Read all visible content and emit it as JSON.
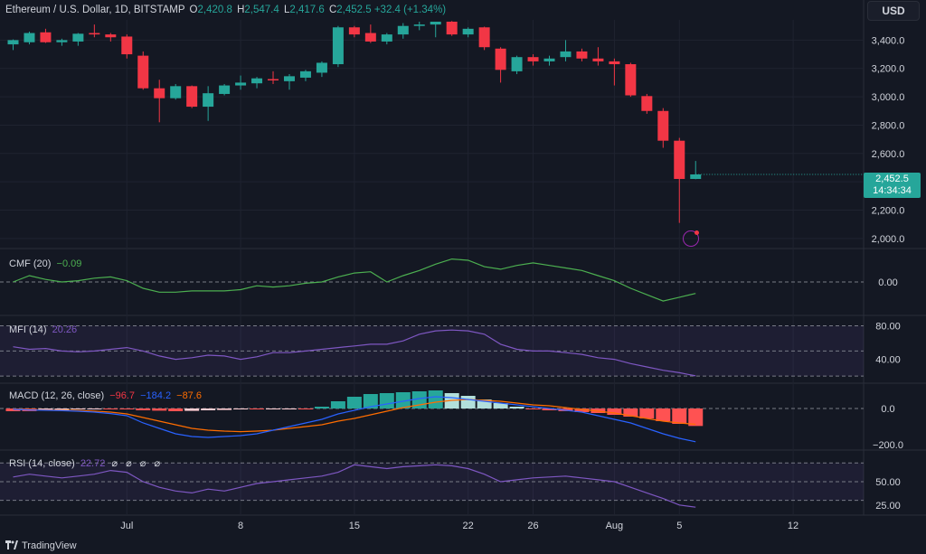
{
  "header": {
    "symbol": "Ethereum / U.S. Dollar, 1D, BITSTAMP",
    "open_label": "O",
    "open": "2,420.8",
    "high_label": "H",
    "high": "2,547.4",
    "low_label": "L",
    "low": "2,417.6",
    "close_label": "C",
    "close": "2,452.5",
    "change": "+32.4 (+1.34%)"
  },
  "currency_button": "USD",
  "price_tag": {
    "price": "2,452.5",
    "countdown": "14:34:34"
  },
  "footer": {
    "brand": "TradingView"
  },
  "colors": {
    "up": "#26a69a",
    "down": "#f23645",
    "bg": "#141823",
    "cmf": "#4caf50",
    "rsi": "#7e57c2",
    "macd": "#2962ff",
    "signal": "#ff6d00"
  },
  "indicators": {
    "cmf": {
      "label": "CMF (20)",
      "value": "−0.09"
    },
    "mfi": {
      "label": "MFI (14)",
      "value": "20.26"
    },
    "macd": {
      "label": "MACD (12, 26, close)",
      "hist": "−96.7",
      "macd": "−184.2",
      "signal": "−87.6"
    },
    "rsi": {
      "label": "RSI (14, close)",
      "value": "22.72",
      "icons": "⌀ ⌀ ⌀ ⌀"
    }
  },
  "chart_data": {
    "type": "candlestick",
    "title": "Ethereum / U.S. Dollar, 1D, BITSTAMP",
    "x_tick_labels": [
      {
        "label": "Jul",
        "index": 7
      },
      {
        "label": "8",
        "index": 14
      },
      {
        "label": "15",
        "index": 21
      },
      {
        "label": "22",
        "index": 28
      },
      {
        "label": "26",
        "index": 32
      },
      {
        "label": "Aug",
        "index": 37
      },
      {
        "label": "5",
        "index": 41
      },
      {
        "label": "12",
        "index": 48
      }
    ],
    "x_slots": 55,
    "price_axis": {
      "ticks": [
        2000,
        2200,
        2400,
        2600,
        2800,
        3000,
        3200,
        3400
      ],
      "range": [
        1980,
        3530
      ]
    },
    "candles": [
      {
        "o": 3370,
        "h": 3405,
        "l": 3330,
        "c": 3400
      },
      {
        "o": 3385,
        "h": 3460,
        "l": 3370,
        "c": 3450
      },
      {
        "o": 3455,
        "h": 3480,
        "l": 3380,
        "c": 3385
      },
      {
        "o": 3385,
        "h": 3410,
        "l": 3360,
        "c": 3400
      },
      {
        "o": 3390,
        "h": 3450,
        "l": 3360,
        "c": 3445
      },
      {
        "o": 3450,
        "h": 3510,
        "l": 3420,
        "c": 3440
      },
      {
        "o": 3440,
        "h": 3450,
        "l": 3390,
        "c": 3420
      },
      {
        "o": 3425,
        "h": 3440,
        "l": 3270,
        "c": 3300
      },
      {
        "o": 3290,
        "h": 3320,
        "l": 3050,
        "c": 3060
      },
      {
        "o": 3060,
        "h": 3120,
        "l": 2820,
        "c": 2990
      },
      {
        "o": 2990,
        "h": 3090,
        "l": 2980,
        "c": 3075
      },
      {
        "o": 3075,
        "h": 3080,
        "l": 2920,
        "c": 2930
      },
      {
        "o": 2930,
        "h": 3075,
        "l": 2830,
        "c": 3025
      },
      {
        "o": 3020,
        "h": 3090,
        "l": 3010,
        "c": 3080
      },
      {
        "o": 3080,
        "h": 3150,
        "l": 3050,
        "c": 3100
      },
      {
        "o": 3095,
        "h": 3140,
        "l": 3060,
        "c": 3130
      },
      {
        "o": 3125,
        "h": 3180,
        "l": 3090,
        "c": 3120
      },
      {
        "o": 3110,
        "h": 3160,
        "l": 3050,
        "c": 3145
      },
      {
        "o": 3135,
        "h": 3190,
        "l": 3110,
        "c": 3180
      },
      {
        "o": 3170,
        "h": 3250,
        "l": 3140,
        "c": 3240
      },
      {
        "o": 3230,
        "h": 3500,
        "l": 3210,
        "c": 3490
      },
      {
        "o": 3490,
        "h": 3500,
        "l": 3420,
        "c": 3440
      },
      {
        "o": 3450,
        "h": 3510,
        "l": 3380,
        "c": 3390
      },
      {
        "o": 3390,
        "h": 3450,
        "l": 3370,
        "c": 3440
      },
      {
        "o": 3440,
        "h": 3520,
        "l": 3410,
        "c": 3500
      },
      {
        "o": 3500,
        "h": 3530,
        "l": 3470,
        "c": 3510
      },
      {
        "o": 3510,
        "h": 3520,
        "l": 3420,
        "c": 3530
      },
      {
        "o": 3530,
        "h": 3535,
        "l": 3430,
        "c": 3440
      },
      {
        "o": 3440,
        "h": 3490,
        "l": 3420,
        "c": 3480
      },
      {
        "o": 3490,
        "h": 3495,
        "l": 3330,
        "c": 3350
      },
      {
        "o": 3340,
        "h": 3350,
        "l": 3100,
        "c": 3190
      },
      {
        "o": 3180,
        "h": 3290,
        "l": 3160,
        "c": 3280
      },
      {
        "o": 3280,
        "h": 3300,
        "l": 3220,
        "c": 3250
      },
      {
        "o": 3250,
        "h": 3290,
        "l": 3220,
        "c": 3270
      },
      {
        "o": 3280,
        "h": 3400,
        "l": 3250,
        "c": 3320
      },
      {
        "o": 3320,
        "h": 3340,
        "l": 3250,
        "c": 3270
      },
      {
        "o": 3270,
        "h": 3350,
        "l": 3220,
        "c": 3250
      },
      {
        "o": 3250,
        "h": 3270,
        "l": 3080,
        "c": 3230
      },
      {
        "o": 3230,
        "h": 3240,
        "l": 3000,
        "c": 3010
      },
      {
        "o": 3005,
        "h": 3020,
        "l": 2880,
        "c": 2900
      },
      {
        "o": 2900,
        "h": 2920,
        "l": 2640,
        "c": 2690
      },
      {
        "o": 2690,
        "h": 2710,
        "l": 2110,
        "c": 2420
      },
      {
        "o": 2420,
        "h": 2547,
        "l": 2418,
        "c": 2452
      }
    ],
    "cmf": {
      "values": [
        0.0,
        0.05,
        0.02,
        0.0,
        0.01,
        0.03,
        0.04,
        0.01,
        -0.05,
        -0.08,
        -0.08,
        -0.07,
        -0.07,
        -0.07,
        -0.06,
        -0.03,
        -0.04,
        -0.03,
        -0.01,
        0.0,
        0.04,
        0.07,
        0.08,
        0.0,
        0.05,
        0.09,
        0.14,
        0.18,
        0.17,
        0.12,
        0.1,
        0.13,
        0.15,
        0.13,
        0.11,
        0.09,
        0.05,
        0.01,
        -0.05,
        -0.1,
        -0.15,
        -0.12,
        -0.09
      ],
      "ticks": [
        0.0
      ],
      "tick_labels": [
        "0.00"
      ]
    },
    "mfi": {
      "values": [
        55,
        52,
        53,
        50,
        49,
        50,
        52,
        54,
        50,
        44,
        40,
        42,
        45,
        44,
        40,
        43,
        48,
        48,
        50,
        52,
        54,
        56,
        58,
        58,
        62,
        70,
        74,
        75,
        74,
        70,
        58,
        52,
        50,
        50,
        48,
        46,
        42,
        40,
        35,
        31,
        27,
        24,
        20.26
      ],
      "ticks": [
        40,
        80
      ],
      "tick_labels": [
        "40.00",
        "80.00"
      ],
      "bands": [
        20,
        80
      ]
    },
    "macd": {
      "macd": [
        -5,
        -8,
        -10,
        -12,
        -15,
        -20,
        -28,
        -40,
        -80,
        -110,
        -140,
        -155,
        -160,
        -155,
        -150,
        -140,
        -120,
        -100,
        -80,
        -60,
        -30,
        -10,
        10,
        25,
        40,
        55,
        65,
        60,
        50,
        40,
        30,
        20,
        10,
        0,
        -10,
        -20,
        -40,
        -60,
        -80,
        -110,
        -140,
        -165,
        -184.2
      ],
      "signal": [
        -5,
        -6,
        -8,
        -9,
        -11,
        -14,
        -20,
        -30,
        -50,
        -70,
        -90,
        -110,
        -120,
        -125,
        -128,
        -125,
        -120,
        -110,
        -100,
        -90,
        -70,
        -55,
        -35,
        -15,
        5,
        20,
        35,
        45,
        50,
        45,
        40,
        30,
        20,
        15,
        5,
        -5,
        -15,
        -25,
        -40,
        -55,
        -70,
        -80,
        -87.6
      ],
      "hist": [
        -15,
        -15,
        -10,
        -8,
        -5,
        -4,
        -5,
        -5,
        -10,
        -12,
        -15,
        -13,
        -10,
        -8,
        -5,
        -5,
        -3,
        -2,
        -2,
        10,
        40,
        65,
        80,
        85,
        90,
        95,
        100,
        85,
        70,
        50,
        30,
        10,
        -5,
        -10,
        -15,
        -20,
        -25,
        -35,
        -45,
        -55,
        -70,
        -85,
        -96.7
      ],
      "ticks": [
        0,
        -200
      ],
      "tick_labels": [
        "0.0",
        "−200.0"
      ]
    },
    "rsi": {
      "values": [
        55,
        58,
        56,
        54,
        56,
        58,
        62,
        60,
        50,
        44,
        40,
        38,
        42,
        40,
        44,
        48,
        50,
        52,
        54,
        56,
        60,
        68,
        66,
        64,
        66,
        67,
        68,
        67,
        64,
        58,
        50,
        52,
        54,
        55,
        56,
        54,
        52,
        50,
        44,
        38,
        32,
        25,
        22.72
      ],
      "ticks": [
        25,
        50
      ],
      "tick_labels": [
        "25.00",
        "50.00"
      ],
      "bands": [
        30,
        70
      ]
    }
  }
}
